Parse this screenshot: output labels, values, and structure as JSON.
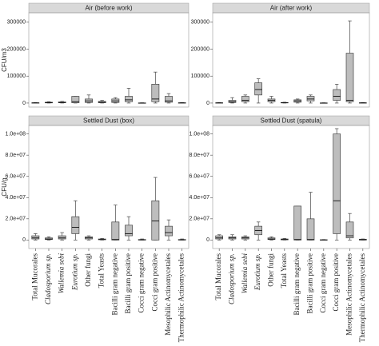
{
  "chart_data": [
    {
      "type": "box",
      "title": "Air (before work)",
      "ylabel": "CFU/m3",
      "ylim": [
        -15000,
        335000
      ],
      "yticks": [
        0,
        100000,
        200000,
        300000
      ],
      "box_fill": "#bdbdbd",
      "box_stroke": "#444",
      "boxes": [
        {
          "min": 0,
          "q1": 0,
          "median": 500,
          "q3": 1000,
          "max": 2000
        },
        {
          "min": 0,
          "q1": 500,
          "median": 1500,
          "q3": 3000,
          "max": 5000
        },
        {
          "min": 0,
          "q1": 1000,
          "median": 2000,
          "q3": 4000,
          "max": 6000
        },
        {
          "min": 0,
          "q1": 1000,
          "median": 5000,
          "q3": 25000,
          "max": 25000
        },
        {
          "min": 0,
          "q1": 2000,
          "median": 8000,
          "q3": 15000,
          "max": 30000
        },
        {
          "min": 0,
          "q1": 1000,
          "median": 3000,
          "q3": 6000,
          "max": 10000
        },
        {
          "min": 0,
          "q1": 2000,
          "median": 8000,
          "q3": 15000,
          "max": 20000
        },
        {
          "min": 0,
          "q1": 5000,
          "median": 12000,
          "q3": 25000,
          "max": 55000
        },
        {
          "min": 0,
          "q1": 0,
          "median": 0,
          "q3": 500,
          "max": 1000
        },
        {
          "min": 0,
          "q1": 5000,
          "median": 15000,
          "q3": 70000,
          "max": 115000
        },
        {
          "min": 0,
          "q1": 3000,
          "median": 8000,
          "q3": 25000,
          "max": 35000
        },
        {
          "min": 0,
          "q1": 0,
          "median": 500,
          "q3": 1000,
          "max": 2000
        }
      ]
    },
    {
      "type": "box",
      "title": "Air (after work)",
      "ylim": [
        -15000,
        335000
      ],
      "yticks": [
        0,
        100000,
        200000,
        300000
      ],
      "box_fill": "#bdbdbd",
      "box_stroke": "#444",
      "boxes": [
        {
          "min": 0,
          "q1": 0,
          "median": 500,
          "q3": 1000,
          "max": 2000
        },
        {
          "min": 0,
          "q1": 2000,
          "median": 5000,
          "q3": 10000,
          "max": 20000
        },
        {
          "min": 0,
          "q1": 5000,
          "median": 10000,
          "q3": 25000,
          "max": 30000
        },
        {
          "min": 0,
          "q1": 30000,
          "median": 50000,
          "q3": 75000,
          "max": 90000
        },
        {
          "min": 0,
          "q1": 5000,
          "median": 10000,
          "q3": 15000,
          "max": 25000
        },
        {
          "min": 0,
          "q1": 500,
          "median": 1000,
          "q3": 2000,
          "max": 3000
        },
        {
          "min": 0,
          "q1": 3000,
          "median": 8000,
          "q3": 12000,
          "max": 15000
        },
        {
          "min": 0,
          "q1": 8000,
          "median": 15000,
          "q3": 25000,
          "max": 30000
        },
        {
          "min": 0,
          "q1": 0,
          "median": 0,
          "q3": 500,
          "max": 1000
        },
        {
          "min": 0,
          "q1": 10000,
          "median": 25000,
          "q3": 50000,
          "max": 70000
        },
        {
          "min": 0,
          "q1": 5000,
          "median": 10000,
          "q3": 185000,
          "max": 305000
        },
        {
          "min": 0,
          "q1": 0,
          "median": 500,
          "q3": 1000,
          "max": 2000
        }
      ]
    },
    {
      "type": "box",
      "title": "Settled Dust (box)",
      "ylabel": "CFU/g",
      "ylim": [
        -8000000,
        108000000
      ],
      "yticks": [
        0,
        {
          "value": 20000000,
          "label": "2.0e+07"
        },
        {
          "value": 40000000,
          "label": "4.0e+07"
        },
        {
          "value": 60000000,
          "label": "6.0e+07"
        },
        {
          "value": 80000000,
          "label": "8.0e+07"
        },
        {
          "value": 100000000,
          "label": "1.0e+08"
        }
      ],
      "box_fill": "#bdbdbd",
      "box_stroke": "#444",
      "categories": [
        "Total Mucorales",
        "Cladosporium sp.",
        "Wallemia sebi",
        "Eurotium sp.",
        "Other fungi",
        "Total Yeasts",
        "Bacilli gram negative",
        "Bacilli gram positive",
        "Cocci gram negative",
        "Cocci gram positive",
        "Mesophilic Actinomycetales",
        "Thermophilic Actinomycetales"
      ],
      "italic": [
        false,
        true,
        true,
        true,
        false,
        false,
        false,
        false,
        false,
        false,
        false,
        false
      ],
      "boxes": [
        {
          "min": 0,
          "q1": 1000000,
          "median": 2000000,
          "q3": 4000000,
          "max": 6000000
        },
        {
          "min": 0,
          "q1": 500000,
          "median": 1000000,
          "q3": 2000000,
          "max": 3000000
        },
        {
          "min": 0,
          "q1": 1000000,
          "median": 2000000,
          "q3": 4000000,
          "max": 7000000
        },
        {
          "min": 0,
          "q1": 6000000,
          "median": 12000000,
          "q3": 22000000,
          "max": 37000000
        },
        {
          "min": 0,
          "q1": 1000000,
          "median": 2000000,
          "q3": 3000000,
          "max": 4000000
        },
        {
          "min": 0,
          "q1": 300000,
          "median": 500000,
          "q3": 1000000,
          "max": 1500000
        },
        {
          "min": 0,
          "q1": 0,
          "median": 500000,
          "q3": 17000000,
          "max": 33000000
        },
        {
          "min": 0,
          "q1": 4000000,
          "median": 6000000,
          "q3": 14000000,
          "max": 22000000
        },
        {
          "min": 0,
          "q1": 0,
          "median": 200000,
          "q3": 500000,
          "max": 1000000
        },
        {
          "min": 0,
          "q1": 0,
          "median": 18000000,
          "q3": 37000000,
          "max": 59000000
        },
        {
          "min": 0,
          "q1": 4000000,
          "median": 7000000,
          "q3": 13000000,
          "max": 19000000
        },
        {
          "min": 0,
          "q1": 0,
          "median": 200000,
          "q3": 500000,
          "max": 1000000
        }
      ]
    },
    {
      "type": "box",
      "title": "Settled Dust (spatula)",
      "ylim": [
        -8000000,
        108000000
      ],
      "yticks": [
        0,
        {
          "value": 20000000,
          "label": "2.0e+07"
        },
        {
          "value": 40000000,
          "label": "4.0e+07"
        },
        {
          "value": 60000000,
          "label": "6.0e+07"
        },
        {
          "value": 80000000,
          "label": "8.0e+07"
        },
        {
          "value": 100000000,
          "label": "1.0e+08"
        }
      ],
      "box_fill": "#bdbdbd",
      "box_stroke": "#444",
      "categories": [
        "Total Mucorales",
        "Cladosporium sp.",
        "Wallemia sebi",
        "Eurotium sp.",
        "Other fungi",
        "Total Yeasts",
        "Bacilli gram negative",
        "Bacilli gram positive",
        "Cocci gram negative",
        "Cocci gram positive",
        "Mesophilic Actinomycetales",
        "Thermophilic Actinomycetales"
      ],
      "italic": [
        false,
        true,
        true,
        true,
        false,
        false,
        false,
        false,
        false,
        false,
        false,
        false
      ],
      "boxes": [
        {
          "min": 0,
          "q1": 1000000,
          "median": 2000000,
          "q3": 4000000,
          "max": 5000000
        },
        {
          "min": 0,
          "q1": 1000000,
          "median": 2000000,
          "q3": 3000000,
          "max": 5000000
        },
        {
          "min": 0,
          "q1": 1000000,
          "median": 2000000,
          "q3": 3000000,
          "max": 4000000
        },
        {
          "min": 0,
          "q1": 5000000,
          "median": 9000000,
          "q3": 13000000,
          "max": 17000000
        },
        {
          "min": 0,
          "q1": 500000,
          "median": 1000000,
          "q3": 2000000,
          "max": 3000000
        },
        {
          "min": 0,
          "q1": 200000,
          "median": 500000,
          "q3": 1000000,
          "max": 1500000
        },
        {
          "min": 0,
          "q1": 0,
          "median": 500000,
          "q3": 32000000,
          "max": 32000000
        },
        {
          "min": 0,
          "q1": 0,
          "median": 500000,
          "q3": 20000000,
          "max": 45000000
        },
        {
          "min": 0,
          "q1": 0,
          "median": 0,
          "q3": 300000,
          "max": 500000
        },
        {
          "min": 0,
          "q1": 6000000,
          "median": 37000000,
          "q3": 100000000,
          "max": 105000000
        },
        {
          "min": 0,
          "q1": 2000000,
          "median": 4000000,
          "q3": 17000000,
          "max": 25000000
        },
        {
          "min": 0,
          "q1": 0,
          "median": 300000,
          "q3": 800000,
          "max": 1000000
        }
      ]
    }
  ]
}
